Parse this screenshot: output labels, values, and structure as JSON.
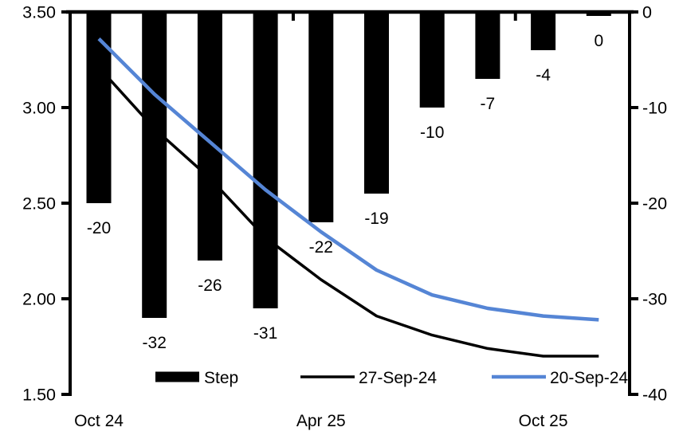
{
  "chart_data": {
    "type": "combo",
    "description": "Meeting-by-meeting rate step (bars, right axis, bp) and implied policy rate paths (lines, left axis, %)",
    "n_points": 10,
    "series": [
      {
        "name": "Step",
        "type": "bar",
        "axis": "right",
        "color": "#000000",
        "values": [
          -20,
          -32,
          -26,
          -31,
          -22,
          -19,
          -10,
          -7,
          -4,
          0
        ],
        "labels": [
          "-20",
          "-32",
          "-26",
          "-31",
          "-22",
          "-19",
          "-10",
          "-7",
          "-4",
          "0"
        ]
      },
      {
        "name": "27-Sep-24",
        "type": "line",
        "axis": "left",
        "color": "#000000",
        "values": [
          3.21,
          2.89,
          2.63,
          2.32,
          2.1,
          1.91,
          1.81,
          1.74,
          1.7,
          1.7
        ]
      },
      {
        "name": "20-Sep-24",
        "type": "line",
        "axis": "left",
        "color": "#5585D5",
        "values": [
          3.36,
          3.07,
          2.82,
          2.57,
          2.35,
          2.15,
          2.02,
          1.95,
          1.91,
          1.89
        ]
      }
    ],
    "x_axis": {
      "tick_labels": [
        {
          "label": "Oct 24",
          "index": 0
        },
        {
          "label": "Apr 25",
          "index": 4
        },
        {
          "label": "Oct 25",
          "index": 8
        }
      ]
    },
    "left_axis": {
      "min": 1.5,
      "max": 3.5,
      "tick_values": [
        3.5,
        3.0,
        2.5,
        2.0,
        1.5
      ],
      "tick_labels": [
        "3.50",
        "3.00",
        "2.50",
        "2.00",
        "1.50"
      ]
    },
    "right_axis": {
      "min": -40,
      "max": 0,
      "tick_values": [
        0,
        -10,
        -20,
        -30,
        -40
      ],
      "tick_labels": [
        "0",
        "-10",
        "-20",
        "-30",
        "-40"
      ]
    },
    "legend": [
      {
        "label": "Step",
        "swatch": "bar",
        "color": "#000000"
      },
      {
        "label": "27-Sep-24",
        "swatch": "line",
        "color": "#000000"
      },
      {
        "label": "20-Sep-24",
        "swatch": "line",
        "color": "#5585D5"
      }
    ],
    "grid": false,
    "legend_position": "bottom"
  }
}
